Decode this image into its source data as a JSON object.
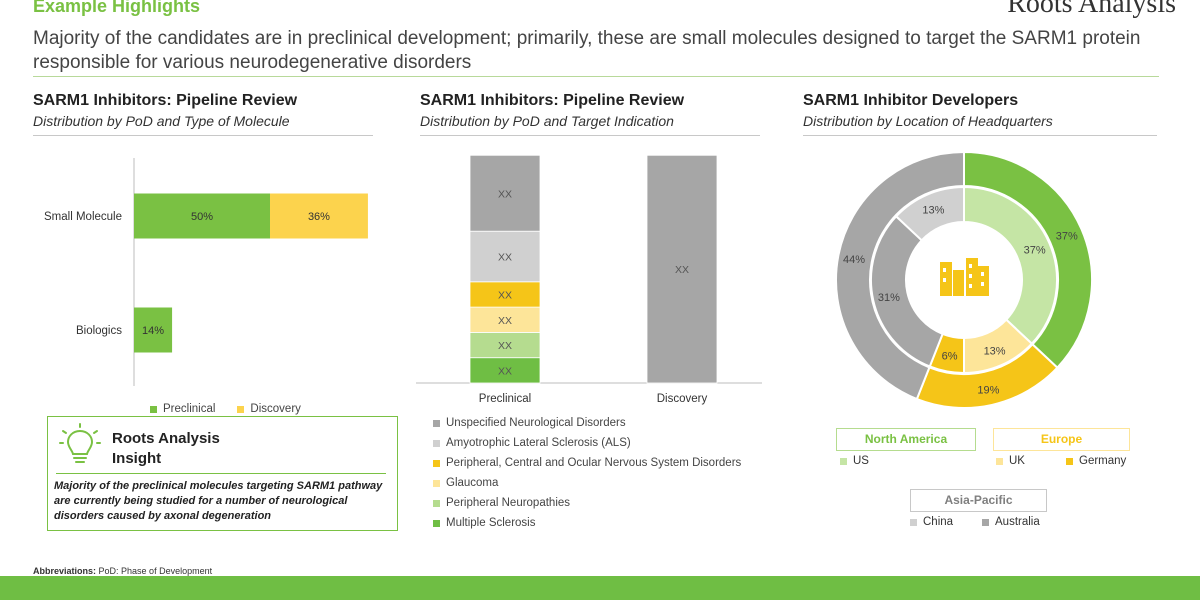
{
  "header": {
    "title": "Example Highlights",
    "logo_text": "Roots Analysis",
    "subtitle": "Majority of the candidates are in preclinical development; primarily, these are small molecules designed to target the SARM1 protein responsible for various neurodegenerative disorders"
  },
  "colors": {
    "green": "#7ac143",
    "yellow": "#fcd34d",
    "gray_dark": "#a6a6a6",
    "gray_light": "#d0d0d0"
  },
  "panel1": {
    "title": "SARM1 Inhibitors: Pipeline Review",
    "subtitle": "Distribution by PoD and Type of Molecule",
    "legend": [
      {
        "label": "Preclinical",
        "color": "#7ac143"
      },
      {
        "label": "Discovery",
        "color": "#fcd34d"
      }
    ]
  },
  "panel2": {
    "title": "SARM1 Inhibitors: Pipeline Review",
    "subtitle": "Distribution by PoD and Target Indication",
    "legend": [
      {
        "label": "Unspecified Neurological Disorders",
        "color": "#a6a6a6"
      },
      {
        "label": "Amyotrophic Lateral Sclerosis (ALS)",
        "color": "#d0d0d0"
      },
      {
        "label": "Peripheral, Central and Ocular Nervous System Disorders",
        "color": "#f5c518"
      },
      {
        "label": "Glaucoma",
        "color": "#fde599"
      },
      {
        "label": "Peripheral Neuropathies",
        "color": "#b5dc8f"
      },
      {
        "label": "Multiple Sclerosis",
        "color": "#6fbe44"
      }
    ]
  },
  "panel3": {
    "title": "SARM1 Inhibitor Developers",
    "subtitle": "Distribution by Location of Headquarters",
    "regions": {
      "north_america": {
        "label": "North America",
        "legend": [
          "US"
        ]
      },
      "europe": {
        "label": "Europe",
        "legend": [
          "UK",
          "Germany"
        ]
      },
      "asia_pacific": {
        "label": "Asia-Pacific",
        "legend": [
          "China",
          "Australia"
        ]
      }
    }
  },
  "insight": {
    "title_line1": "Roots Analysis",
    "title_line2": "Insight",
    "text": "Majority of the preclinical molecules targeting SARM1 pathway are currently being studied for a number of neurological disorders caused by axonal degeneration"
  },
  "footer": {
    "abbreviations_label": "Abbreviations:",
    "abbreviations_text": "PoD: Phase of Development"
  },
  "chart_data": [
    {
      "type": "bar",
      "orientation": "horizontal",
      "stacked": true,
      "categories": [
        "Small Molecule",
        "Biologics"
      ],
      "series": [
        {
          "name": "Preclinical",
          "values": [
            50,
            14
          ],
          "labels": [
            "50%",
            "14%"
          ]
        },
        {
          "name": "Discovery",
          "values": [
            36,
            0
          ],
          "labels": [
            "36%",
            ""
          ]
        }
      ],
      "xlim": [
        0,
        100
      ]
    },
    {
      "type": "bar",
      "orientation": "vertical",
      "stacked": true,
      "categories": [
        "Preclinical",
        "Discovery"
      ],
      "series": [
        {
          "name": "Multiple Sclerosis",
          "values": [
            1,
            0
          ],
          "labels": [
            "XX",
            ""
          ]
        },
        {
          "name": "Peripheral Neuropathies",
          "values": [
            1,
            0
          ],
          "labels": [
            "XX",
            ""
          ]
        },
        {
          "name": "Glaucoma",
          "values": [
            1,
            0
          ],
          "labels": [
            "XX",
            ""
          ]
        },
        {
          "name": "Peripheral, Central and Ocular Nervous System Disorders",
          "values": [
            1,
            0
          ],
          "labels": [
            "XX",
            ""
          ]
        },
        {
          "name": "Amyotrophic Lateral Sclerosis (ALS)",
          "values": [
            2,
            0
          ],
          "labels": [
            "XX",
            ""
          ]
        },
        {
          "name": "Unspecified Neurological Disorders",
          "values": [
            3,
            9
          ],
          "labels": [
            "XX",
            "XX"
          ]
        }
      ]
    },
    {
      "type": "pie",
      "variant": "double-donut",
      "outer_ring": {
        "name": "Region",
        "slices": [
          {
            "label": "North America",
            "value": 37,
            "display": "37%",
            "color": "#7ac143"
          },
          {
            "label": "Europe",
            "value": 19,
            "display": "19%",
            "color": "#f5c518"
          },
          {
            "label": "Asia-Pacific",
            "value": 44,
            "display": "44%",
            "color": "#a6a6a6"
          }
        ]
      },
      "inner_ring": {
        "name": "Country",
        "slices": [
          {
            "label": "US",
            "value": 37,
            "display": "37%",
            "color": "#c5e5a5"
          },
          {
            "label": "UK",
            "value": 13,
            "display": "13%",
            "color": "#fde599"
          },
          {
            "label": "Germany",
            "value": 6,
            "display": "6%",
            "color": "#f5c518"
          },
          {
            "label": "Australia",
            "value": 31,
            "display": "31%",
            "color": "#a6a6a6"
          },
          {
            "label": "China",
            "value": 13,
            "display": "13%",
            "color": "#d0d0d0"
          }
        ]
      }
    }
  ]
}
